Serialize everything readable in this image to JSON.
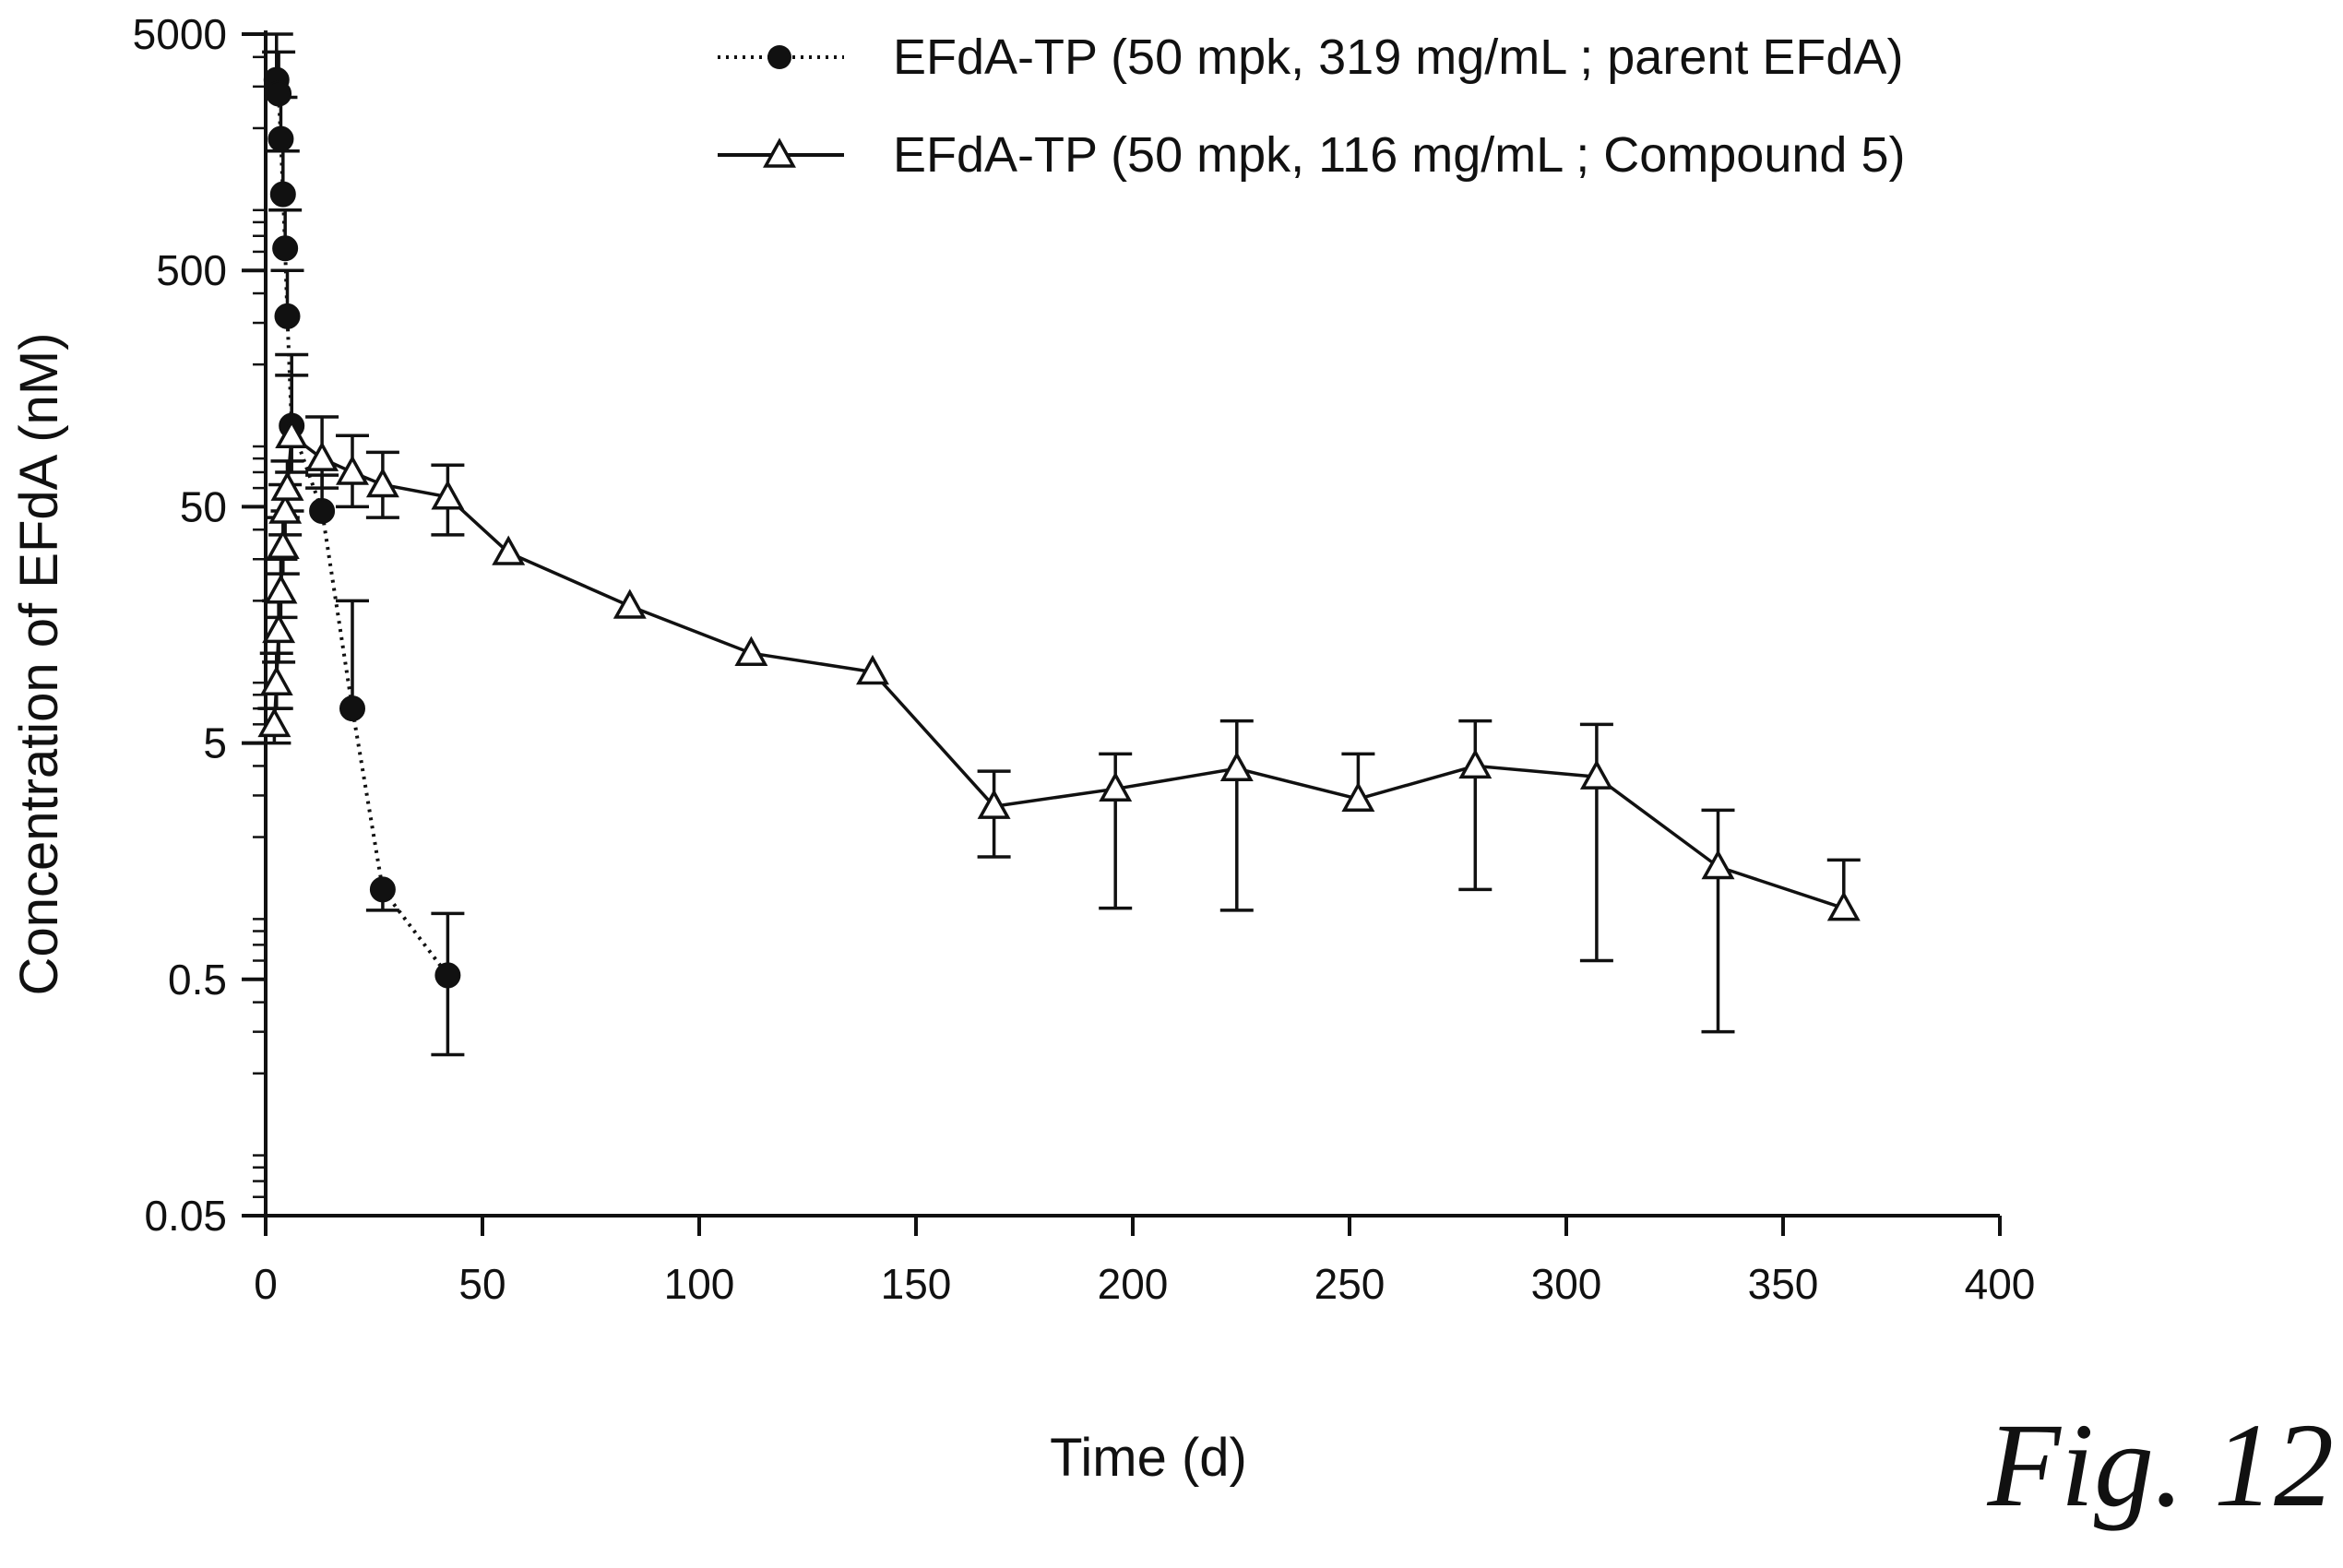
{
  "figure_label": "Fig. 12",
  "chart_data": {
    "type": "line",
    "title": "",
    "xlabel": "Time (d)",
    "ylabel": "Concentration of EFdA (nM)",
    "x_scale": "linear",
    "y_scale": "log",
    "xlim": [
      0,
      400
    ],
    "ylim": [
      0.05,
      5000
    ],
    "x_ticks": [
      0,
      50,
      100,
      150,
      200,
      250,
      300,
      350,
      400
    ],
    "x_tick_labels": [
      "0",
      "50",
      "100",
      "150",
      "200",
      "250",
      "300",
      "350",
      "400"
    ],
    "y_ticks": [
      0.05,
      0.5,
      5,
      50,
      500,
      5000
    ],
    "y_tick_labels": [
      "0.05",
      "0.5",
      "5",
      "50",
      "500",
      "5000"
    ],
    "grid": false,
    "legend_position": "top-right",
    "series": [
      {
        "name": "EFdA-TP (50 mpk, 319 mg/mL ; parent EFdA)",
        "marker": "filled-circle",
        "line_style": "dotted",
        "color": "#111111",
        "x": [
          2.5,
          3,
          3.5,
          4,
          4.5,
          5,
          6,
          13,
          20,
          27,
          42
        ],
        "y": [
          3200,
          2800,
          1800,
          1050,
          620,
          320,
          110,
          48,
          7,
          1.2,
          0.52
        ],
        "err_upper": [
          5000,
          4200,
          2700,
          1600,
          900,
          500,
          220,
          68,
          20,
          1.2,
          0.95
        ],
        "err_lower": [
          3200,
          2800,
          1800,
          1050,
          620,
          320,
          110,
          48,
          7,
          0.98,
          0.24
        ]
      },
      {
        "name": "EFdA-TP (50 mpk, 116 mg/mL ; Compound 5)",
        "marker": "open-triangle",
        "line_style": "solid",
        "color": "#111111",
        "x": [
          2,
          2.5,
          3,
          3.5,
          4,
          4.5,
          5,
          6,
          13,
          20,
          27,
          42,
          56,
          84,
          112,
          140,
          168,
          196,
          224,
          252,
          279,
          307,
          335,
          364
        ],
        "y": [
          6,
          9,
          15,
          22,
          34,
          48,
          60,
          100,
          80,
          70,
          62,
          55,
          32,
          19,
          12,
          10,
          2.7,
          3.2,
          3.9,
          2.9,
          4.0,
          3.6,
          1.5,
          1.0
        ],
        "err_upper": [
          7,
          12,
          20,
          30,
          45,
          62,
          78,
          180,
          120,
          100,
          85,
          75,
          32,
          19,
          12,
          10,
          3.8,
          4.5,
          6.2,
          4.5,
          6.2,
          6.0,
          2.6,
          1.6
        ],
        "err_lower": [
          5,
          7,
          11,
          17,
          26,
          38,
          48,
          70,
          60,
          50,
          45,
          38,
          32,
          19,
          12,
          10,
          1.65,
          1.0,
          0.98,
          2.9,
          1.2,
          0.6,
          0.3,
          1.0
        ]
      }
    ]
  }
}
